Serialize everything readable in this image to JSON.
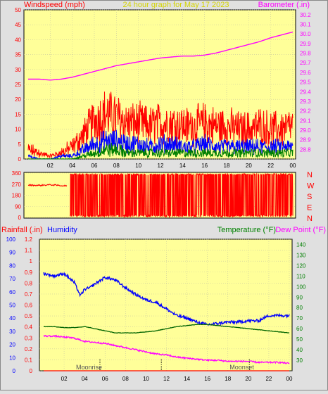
{
  "header": {
    "left_label": "Windspeed (mph)",
    "center_label": "24 hour graph for   May 17 2023",
    "right_label": "Barometer (.in)"
  },
  "bottom_header": {
    "rainfall_label": "Rainfall (.in)",
    "humidity_label": "Humidity",
    "temperature_label": "Temperature (°F)",
    "dewpoint_label": "Dew Point (°F)"
  },
  "annotations": {
    "moonrise": "Moonrise",
    "moonset": "Moonset"
  },
  "colors": {
    "plot_bg": "#ffff99",
    "gust": "#ff0000",
    "wind": "#0000ff",
    "wind_low": "#008000",
    "barometer": "#ff00ff",
    "direction": "#ff0000",
    "humidity": "#0000ff",
    "temperature": "#006400",
    "dewpoint": "#ff00ff",
    "axis_left": "#ff0000",
    "axis_right": "#ff00ff",
    "axis_temp": "#008000"
  },
  "chart_data": [
    {
      "id": "wind_baro",
      "type": "line",
      "xlabel": "",
      "x_ticks": [
        "02",
        "04",
        "06",
        "08",
        "10",
        "12",
        "14",
        "16",
        "18",
        "20",
        "22",
        "00"
      ],
      "ylabel_left": "Windspeed (mph)",
      "ylim_left": [
        0,
        50
      ],
      "yticks_left": [
        0,
        5,
        10,
        15,
        20,
        25,
        30,
        35,
        40,
        45,
        50
      ],
      "ylabel_right": "Barometer (.in)",
      "ylim_right": [
        28.7,
        30.25
      ],
      "yticks_right": [
        28.8,
        28.9,
        29.0,
        29.1,
        29.2,
        29.3,
        29.4,
        29.5,
        29.6,
        29.7,
        29.8,
        29.9,
        30.0,
        30.1,
        30.2
      ],
      "series": [
        {
          "name": "Wind gust",
          "axis": "left",
          "hours": [
            0,
            1,
            2,
            3,
            4,
            5,
            6,
            7,
            8,
            9,
            10,
            11,
            12,
            13,
            14,
            15,
            16,
            17,
            18,
            19,
            20,
            21,
            22,
            23,
            24
          ],
          "values": [
            3,
            2,
            1,
            2,
            4,
            8,
            13,
            15,
            14,
            12,
            12,
            11,
            12,
            12,
            11,
            11,
            12,
            11,
            11,
            10,
            10,
            11,
            10,
            10,
            11
          ]
        },
        {
          "name": "Wind speed",
          "axis": "left",
          "hours": [
            0,
            1,
            2,
            3,
            4,
            5,
            6,
            7,
            8,
            9,
            10,
            11,
            12,
            13,
            14,
            15,
            16,
            17,
            18,
            19,
            20,
            21,
            22,
            23,
            24
          ],
          "values": [
            1,
            0,
            0,
            1,
            1,
            3,
            5,
            6,
            6,
            5,
            5,
            4,
            5,
            5,
            4,
            4,
            5,
            4,
            4,
            4,
            4,
            4,
            4,
            4,
            4
          ]
        },
        {
          "name": "Wind low",
          "axis": "left",
          "hours": [
            0,
            1,
            2,
            3,
            4,
            5,
            6,
            7,
            8,
            9,
            10,
            11,
            12,
            13,
            14,
            15,
            16,
            17,
            18,
            19,
            20,
            21,
            22,
            23,
            24
          ],
          "values": [
            0,
            0,
            0,
            0,
            0,
            1,
            2,
            3,
            3,
            2,
            2,
            2,
            2,
            2,
            2,
            2,
            2,
            2,
            2,
            2,
            2,
            2,
            2,
            2,
            2
          ]
        },
        {
          "name": "Barometer",
          "axis": "right",
          "hours": [
            0,
            1,
            2,
            3,
            4,
            5,
            6,
            7,
            8,
            9,
            10,
            11,
            12,
            13,
            14,
            15,
            16,
            17,
            18,
            19,
            20,
            21,
            22,
            23,
            24
          ],
          "values": [
            29.53,
            29.53,
            29.52,
            29.53,
            29.55,
            29.58,
            29.61,
            29.64,
            29.67,
            29.69,
            29.71,
            29.73,
            29.75,
            29.76,
            29.77,
            29.77,
            29.78,
            29.8,
            29.83,
            29.86,
            29.89,
            29.92,
            29.96,
            29.99,
            30.02
          ]
        }
      ]
    },
    {
      "id": "wind_direction",
      "type": "line",
      "ylim": [
        0,
        360
      ],
      "yticks": [
        0,
        90,
        180,
        270,
        360
      ],
      "compass_labels": [
        "N",
        "W",
        "S",
        "E",
        "N"
      ],
      "series": [
        {
          "name": "Wind direction",
          "hours": [
            0,
            1,
            2,
            3
          ],
          "values": [
            262,
            260,
            265,
            258
          ]
        }
      ]
    },
    {
      "id": "rain_hum_temp",
      "type": "line",
      "x_ticks": [
        "02",
        "04",
        "06",
        "08",
        "10",
        "12",
        "14",
        "16",
        "18",
        "20",
        "22",
        "00"
      ],
      "ylabel_left": "Rainfall (.in)",
      "ylim_left_rain": [
        0,
        1.2
      ],
      "yticks_left_rain": [
        0,
        0.1,
        0.2,
        0.3,
        0.4,
        0.5,
        0.6,
        0.7,
        0.8,
        0.9,
        1,
        1.1,
        1.2
      ],
      "ylim_left_humidity": [
        0,
        100
      ],
      "yticks_left_humidity": [
        0,
        10,
        20,
        30,
        40,
        50,
        60,
        70,
        80,
        90,
        100
      ],
      "ylabel_right": "Temperature (°F)",
      "ylim_right": [
        20,
        145
      ],
      "yticks_right": [
        30,
        40,
        50,
        60,
        70,
        80,
        90,
        100,
        110,
        120,
        130,
        140
      ],
      "series": [
        {
          "name": "Humidity",
          "axis": "humidity",
          "hours": [
            0,
            1,
            2,
            3,
            3.6,
            4,
            4.5,
            5,
            6,
            7,
            8,
            9,
            10,
            11,
            12,
            13,
            14,
            15,
            16,
            17,
            18,
            19,
            20,
            21,
            22,
            23,
            24
          ],
          "values": [
            74,
            72,
            74,
            67,
            57,
            62,
            63,
            66,
            71,
            69,
            63,
            58,
            54,
            52,
            47,
            42,
            40,
            37,
            35,
            36,
            37,
            37,
            38,
            38,
            42,
            42,
            42
          ]
        },
        {
          "name": "Temperature",
          "axis": "right",
          "hours": [
            0,
            1,
            2,
            3,
            4,
            5,
            6,
            7,
            8,
            9,
            10,
            11,
            12,
            13,
            14,
            15,
            16,
            17,
            18,
            19,
            20,
            21,
            22,
            23,
            24
          ],
          "values": [
            62,
            62,
            61,
            61,
            62,
            60,
            58,
            56,
            56,
            56,
            57,
            58,
            60,
            62,
            63,
            64,
            64,
            63,
            62,
            61,
            60,
            59,
            58,
            57,
            56
          ]
        },
        {
          "name": "Dew Point",
          "axis": "right",
          "hours": [
            0,
            1,
            2,
            3,
            4,
            5,
            6,
            7,
            8,
            9,
            10,
            11,
            12,
            13,
            14,
            15,
            16,
            17,
            18,
            19,
            20,
            21,
            22,
            23,
            24
          ],
          "values": [
            53,
            53,
            52,
            51,
            48,
            47,
            46,
            44,
            42,
            40,
            38,
            36,
            35,
            33,
            32,
            31,
            30,
            30,
            29,
            29,
            29,
            28,
            28,
            28,
            27
          ]
        },
        {
          "name": "Rainfall",
          "axis": "rain",
          "hours": [
            0,
            24
          ],
          "values": [
            0,
            0
          ]
        }
      ],
      "markers": [
        {
          "label": "Moonrise",
          "hour": 5.5
        },
        {
          "label": "",
          "hour": 11.5
        },
        {
          "label": "Moonset",
          "hour": 20.1
        }
      ]
    }
  ]
}
